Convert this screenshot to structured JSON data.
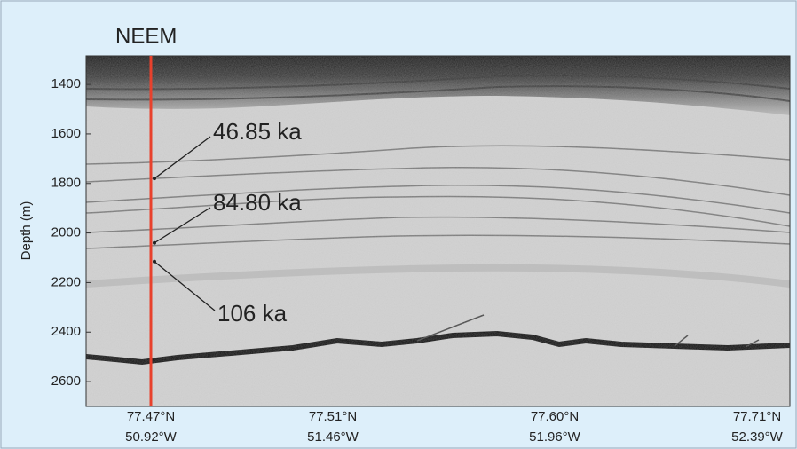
{
  "chart_data": {
    "type": "radargram",
    "title": "NEEM",
    "ylabel": "Depth (m)",
    "ylim": [
      1285,
      2700
    ],
    "y_inverted": true,
    "yticks": [
      1400,
      1600,
      1800,
      2000,
      2200,
      2400,
      2600
    ],
    "categories": [
      [
        "77.47°N",
        "50.92°W"
      ],
      [
        "77.51°N",
        "51.46°W"
      ],
      [
        "77.60°N",
        "51.96°W"
      ],
      [
        "77.71°N",
        "52.39°W"
      ]
    ],
    "core_line_color": "#e8412c",
    "annotations": [
      {
        "text": "46.85 ka",
        "depth": 1780
      },
      {
        "text": "84.80 ka",
        "depth": 2040
      },
      {
        "text": "106 ka",
        "depth": 2115
      }
    ]
  }
}
